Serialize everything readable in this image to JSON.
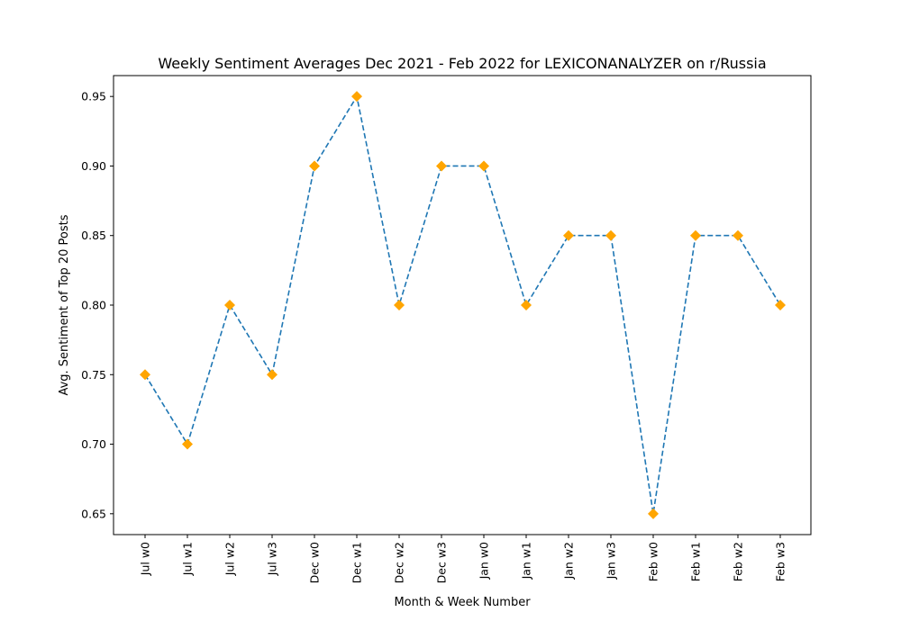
{
  "chart_data": {
    "type": "line",
    "title": "Weekly Sentiment Averages Dec 2021 - Feb 2022 for LEXICONANALYZER on r/Russia",
    "xlabel": "Month & Week Number",
    "ylabel": "Avg. Sentiment of Top 20 Posts",
    "categories": [
      "Jul w0",
      "Jul w1",
      "Jul w2",
      "Jul w3",
      "Dec w0",
      "Dec w1",
      "Dec w2",
      "Dec w3",
      "Jan w0",
      "Jan w1",
      "Jan w2",
      "Jan w3",
      "Feb w0",
      "Feb w1",
      "Feb w2",
      "Feb w3"
    ],
    "series": [
      {
        "values": [
          0.75,
          0.7,
          0.8,
          0.75,
          0.9,
          0.95,
          0.8,
          0.9,
          0.9,
          0.8,
          0.85,
          0.85,
          0.65,
          0.85,
          0.85,
          0.8
        ],
        "line_color": "#1f77b4",
        "line_style": "dashed",
        "marker": "diamond",
        "marker_color": "#ffa500"
      }
    ],
    "yticks": [
      "0.65",
      "0.70",
      "0.75",
      "0.80",
      "0.85",
      "0.90",
      "0.95"
    ],
    "ylim": [
      0.635,
      0.965
    ],
    "grid": false
  }
}
